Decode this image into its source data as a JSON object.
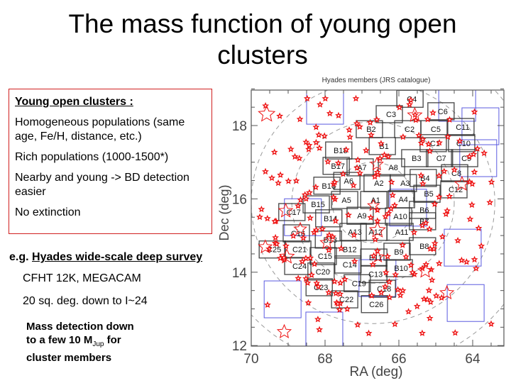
{
  "slide": {
    "title_line1": "The mass function of young open",
    "title_line2": "clusters",
    "box": {
      "heading": "Young open clusters :",
      "items": [
        "Homogeneous populations (same age, Fe/H, distance, etc.)",
        "Rich populations (1000-1500*)",
        "Nearby and young -> BD detection easier",
        "No extinction"
      ]
    },
    "survey_prefix": "e.g. ",
    "survey_title": "Hyades wide-scale deep survey",
    "instruments": "CFHT 12K, MEGACAM",
    "coverage": "20 sq. deg. down to I~24",
    "mass_line1": "Mass detection down",
    "mass_line2a": "to a few 10 M",
    "mass_sub": "Jup",
    "mass_line2b": " for",
    "mass_line3": "cluster members"
  },
  "chart_data": {
    "type": "scatter",
    "title": "Hyades members (JRS catalogue)",
    "xlabel": "RA (deg)",
    "ylabel": "Dec (deg)",
    "xlim": [
      70,
      63.2
    ],
    "ylim": [
      12,
      19
    ],
    "xticks": [
      "70",
      "68",
      "66",
      "64"
    ],
    "yticks": [
      "12",
      "14",
      "16",
      "18"
    ],
    "colors": {
      "fields_12k": "#333333",
      "fields_megacam": "#5a5ae0",
      "members": "#ee1111",
      "circles": "#999999"
    },
    "cluster_center": [
      66.7,
      15.9
    ],
    "circle_radii_deg": [
      1.1,
      2.2,
      3.3,
      4.5,
      5.8
    ],
    "fields_12k": [
      {
        "name": "C4",
        "ra": 65.67,
        "dec": 18.73
      },
      {
        "name": "C3",
        "ra": 66.23,
        "dec": 18.31
      },
      {
        "name": "C6",
        "ra": 64.83,
        "dec": 18.39
      },
      {
        "name": "B2",
        "ra": 66.77,
        "dec": 17.9
      },
      {
        "name": "C2",
        "ra": 65.73,
        "dec": 17.9
      },
      {
        "name": "C5",
        "ra": 65.02,
        "dec": 17.9
      },
      {
        "name": "C11",
        "ra": 64.29,
        "dec": 17.96
      },
      {
        "name": "B1",
        "ra": 66.42,
        "dec": 17.44
      },
      {
        "name": "C1",
        "ra": 65.04,
        "dec": 17.52
      },
      {
        "name": "C10",
        "ra": 64.27,
        "dec": 17.52
      },
      {
        "name": "B18",
        "ra": 67.6,
        "dec": 17.32
      },
      {
        "name": "B3",
        "ra": 65.54,
        "dec": 17.11
      },
      {
        "name": "C7",
        "ra": 64.87,
        "dec": 17.11
      },
      {
        "name": "C9",
        "ra": 64.19,
        "dec": 17.11
      },
      {
        "name": "B17",
        "ra": 67.67,
        "dec": 16.9
      },
      {
        "name": "A7",
        "ra": 67.02,
        "dec": 16.86
      },
      {
        "name": "A8",
        "ra": 66.17,
        "dec": 16.86
      },
      {
        "name": "C8",
        "ra": 64.46,
        "dec": 16.7
      },
      {
        "name": "B4",
        "ra": 65.31,
        "dec": 16.57
      },
      {
        "name": "A6",
        "ra": 67.38,
        "dec": 16.49
      },
      {
        "name": "B16",
        "ra": 67.92,
        "dec": 16.36
      },
      {
        "name": "A2",
        "ra": 66.56,
        "dec": 16.43
      },
      {
        "name": "A3",
        "ra": 65.85,
        "dec": 16.43
      },
      {
        "name": "C12",
        "ra": 64.48,
        "dec": 16.26
      },
      {
        "name": "B5",
        "ra": 65.21,
        "dec": 16.14
      },
      {
        "name": "A5",
        "ra": 67.44,
        "dec": 15.97
      },
      {
        "name": "A1",
        "ra": 66.65,
        "dec": 15.97
      },
      {
        "name": "A4",
        "ra": 65.9,
        "dec": 15.99
      },
      {
        "name": "B15",
        "ra": 68.21,
        "dec": 15.85
      },
      {
        "name": "C17",
        "ra": 68.87,
        "dec": 15.64
      },
      {
        "name": "B6",
        "ra": 65.33,
        "dec": 15.7
      },
      {
        "name": "A9",
        "ra": 67.02,
        "dec": 15.54
      },
      {
        "name": "A10",
        "ra": 65.98,
        "dec": 15.52
      },
      {
        "name": "B14",
        "ra": 67.87,
        "dec": 15.47
      },
      {
        "name": "B7",
        "ra": 65.33,
        "dec": 15.39
      },
      {
        "name": "C16",
        "ra": 68.75,
        "dec": 15.06
      },
      {
        "name": "A13",
        "ra": 67.21,
        "dec": 15.1
      },
      {
        "name": "A12",
        "ra": 66.65,
        "dec": 15.1
      },
      {
        "name": "A11",
        "ra": 65.94,
        "dec": 15.1
      },
      {
        "name": "B13",
        "ra": 67.88,
        "dec": 14.89
      },
      {
        "name": "B8",
        "ra": 65.33,
        "dec": 14.71
      },
      {
        "name": "C25",
        "ra": 69.4,
        "dec": 14.62
      },
      {
        "name": "C21",
        "ra": 68.71,
        "dec": 14.62
      },
      {
        "name": "B12",
        "ra": 67.35,
        "dec": 14.62
      },
      {
        "name": "B9",
        "ra": 66.02,
        "dec": 14.56
      },
      {
        "name": "C15",
        "ra": 68.02,
        "dec": 14.44
      },
      {
        "name": "B11",
        "ra": 66.65,
        "dec": 14.4
      },
      {
        "name": "C24",
        "ra": 68.71,
        "dec": 14.17
      },
      {
        "name": "C14",
        "ra": 67.35,
        "dec": 14.21
      },
      {
        "name": "C20",
        "ra": 68.08,
        "dec": 14.02
      },
      {
        "name": "B10",
        "ra": 65.96,
        "dec": 14.11
      },
      {
        "name": "C13",
        "ra": 66.65,
        "dec": 13.95
      },
      {
        "name": "C19",
        "ra": 67.1,
        "dec": 13.7
      },
      {
        "name": "C23",
        "ra": 68.13,
        "dec": 13.59
      },
      {
        "name": "C18",
        "ra": 66.42,
        "dec": 13.55
      },
      {
        "name": "C22",
        "ra": 67.44,
        "dec": 13.26
      },
      {
        "name": "C26",
        "ra": 66.63,
        "dec": 13.13
      }
    ],
    "fields_megacam": [
      {
        "ra": 68.0,
        "dec": 18.54
      },
      {
        "ra": 64.42,
        "dec": 18.62
      },
      {
        "ra": 63.79,
        "dec": 17.98
      },
      {
        "ra": 63.85,
        "dec": 17.11
      },
      {
        "ra": 68.6,
        "dec": 15.5
      },
      {
        "ra": 65.75,
        "dec": 15.76
      },
      {
        "ra": 66.58,
        "dec": 13.84
      },
      {
        "ra": 64.27,
        "dec": 14.67
      },
      {
        "ra": 69.15,
        "dec": 13.26
      },
      {
        "ra": 64.19,
        "dec": 13.16
      },
      {
        "ra": 68.02,
        "dec": 12.41
      }
    ]
  }
}
